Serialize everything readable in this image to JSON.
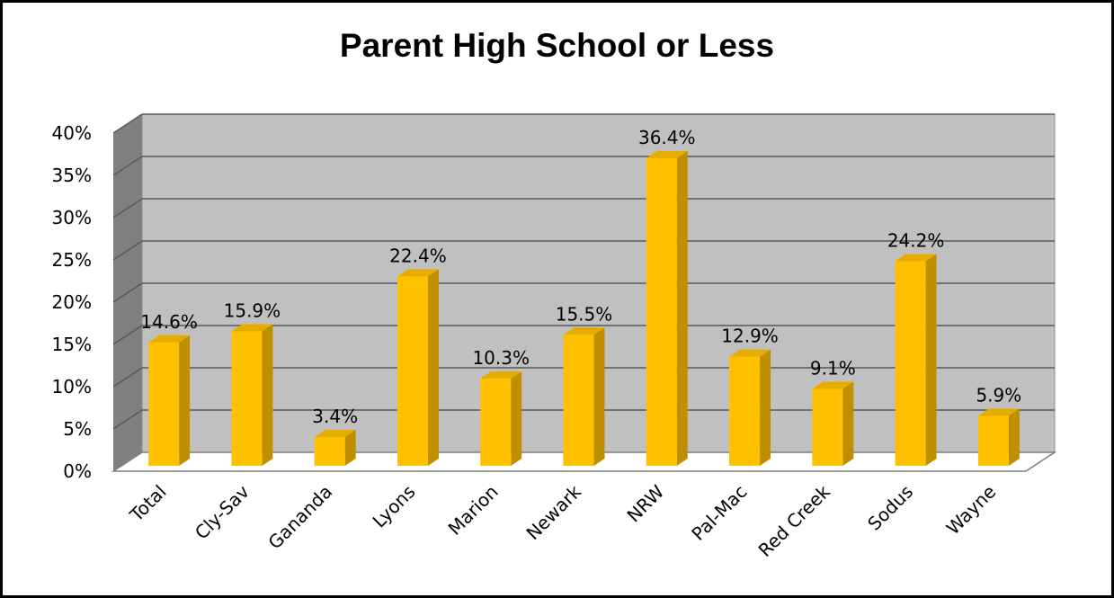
{
  "chart_data": {
    "type": "bar",
    "title": "Parent High School or Less",
    "categories": [
      "Total",
      "Cly-Sav",
      "Gananda",
      "Lyons",
      "Marion",
      "Newark",
      "NRW",
      "Pal-Mac",
      "Red Creek",
      "Sodus",
      "Wayne"
    ],
    "values": [
      14.6,
      15.9,
      3.4,
      22.4,
      10.3,
      15.5,
      36.4,
      12.9,
      9.1,
      24.2,
      5.9
    ],
    "data_labels": [
      "14.6%",
      "15.9%",
      "3.4%",
      "22.4%",
      "10.3%",
      "15.5%",
      "36.4%",
      "12.9%",
      "9.1%",
      "24.2%",
      "5.9%"
    ],
    "ylim": [
      0,
      40
    ],
    "yticks": [
      "0%",
      "5%",
      "10%",
      "15%",
      "20%",
      "25%",
      "30%",
      "35%",
      "40%"
    ],
    "xlabel": "",
    "ylabel": "",
    "grid": true,
    "three_d": true,
    "colors": {
      "bar_front": "#FFC000",
      "bar_side": "#BF8F00",
      "bar_top": "#E6AC00",
      "back_wall": "#C0C0C0",
      "side_wall": "#7F7F7F",
      "gridline": "#595959"
    }
  }
}
